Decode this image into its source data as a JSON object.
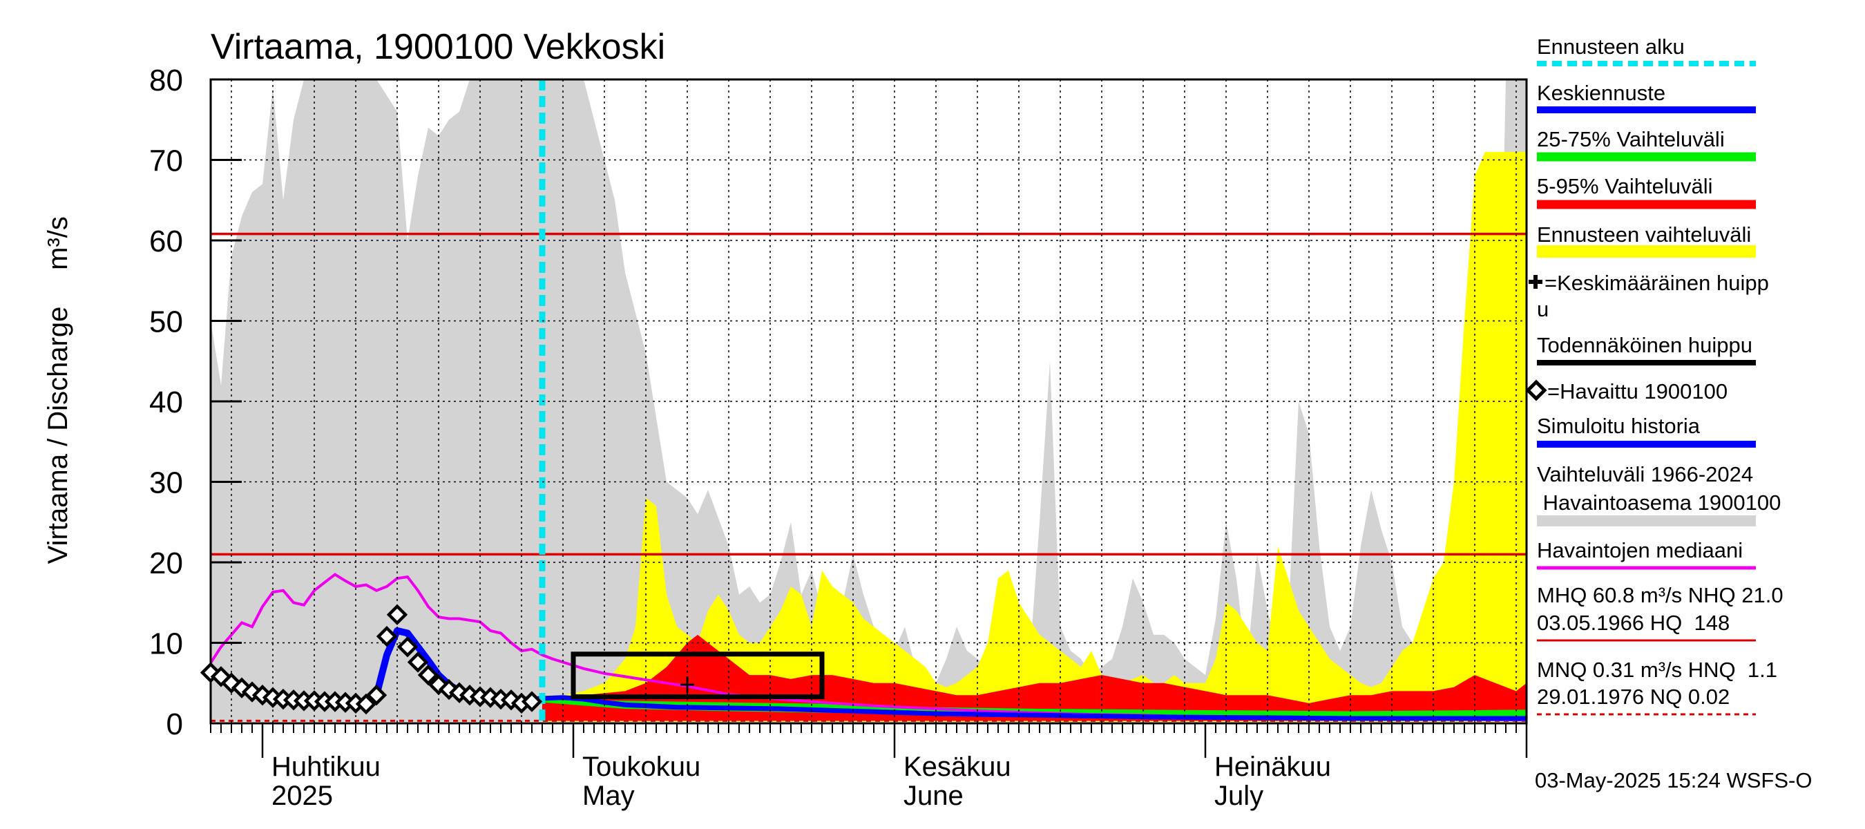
{
  "chart_data": {
    "type": "area",
    "title": "Virtaama, 1900100 Vekkoski",
    "ylabel": "Virtaama / Discharge",
    "yunit": "m³/s",
    "ylim": [
      0,
      80
    ],
    "yticks": [
      "0",
      "10",
      "20",
      "30",
      "40",
      "50",
      "60",
      "70",
      "80"
    ],
    "xlim_days": [
      0,
      127
    ],
    "x_start": "2025-03-26",
    "forecast_start_day": 32,
    "months": [
      {
        "day": 6,
        "fi": "Huhtikuu",
        "en": "2025"
      },
      {
        "day": 36,
        "fi": "Toukokuu",
        "en": "May"
      },
      {
        "day": 67,
        "fi": "Kesäkuu",
        "en": "June"
      },
      {
        "day": 97,
        "fi": "Heinäkuu",
        "en": "July"
      }
    ],
    "hlines": [
      {
        "name": "MHQ",
        "value": 60.8
      },
      {
        "name": "NHQ",
        "value": 21.0
      },
      {
        "name": "MNQ",
        "value": 0.31,
        "dashed": true
      }
    ],
    "history_range": {
      "x": [
        0,
        1,
        2,
        3,
        4,
        5,
        6,
        7,
        8,
        9,
        10,
        11,
        12,
        14,
        16,
        18,
        19,
        20,
        21,
        22,
        23,
        24,
        25,
        26,
        27,
        28,
        29,
        30,
        31,
        32,
        33,
        35,
        36,
        38,
        39,
        40,
        42,
        44,
        46,
        47,
        48,
        50,
        51,
        52,
        53,
        54,
        55,
        56,
        57,
        58,
        59,
        60,
        61,
        62,
        63,
        64,
        65,
        66,
        67,
        68,
        69,
        70,
        71,
        72,
        73,
        74,
        75,
        76,
        77,
        78,
        79,
        80,
        81,
        82,
        83,
        84,
        85,
        86,
        87,
        88,
        89,
        90,
        91,
        92,
        93,
        94,
        95,
        96,
        97,
        98,
        99,
        100,
        101,
        102,
        103,
        104,
        105,
        106,
        107,
        108,
        109,
        110,
        111,
        112,
        113,
        114,
        115,
        116,
        117,
        118,
        119,
        120,
        121,
        122,
        123,
        124,
        125,
        126,
        127
      ],
      "upper": [
        50,
        42,
        58,
        63,
        66,
        67,
        79,
        65,
        75,
        80,
        80,
        80,
        80,
        80,
        80,
        76,
        60,
        68,
        74,
        73,
        75,
        76,
        80,
        80,
        80,
        80,
        80,
        80,
        80,
        80,
        80,
        80,
        80,
        70,
        65,
        56,
        46,
        30,
        28,
        26,
        29,
        22,
        16,
        17,
        15,
        16,
        20,
        25,
        16,
        19,
        14,
        13,
        15,
        21,
        16,
        12,
        10,
        9,
        12,
        7,
        6,
        5,
        8,
        12,
        9,
        8,
        7,
        16,
        12,
        7,
        7,
        25,
        45,
        12,
        9,
        8,
        6,
        7,
        8,
        12,
        18,
        15,
        11,
        11,
        10,
        8,
        7,
        6,
        13,
        25,
        18,
        7,
        21,
        14,
        9,
        13,
        40,
        36,
        22,
        12,
        9,
        12,
        22,
        29,
        24,
        20,
        12,
        10,
        8,
        15,
        18,
        20,
        24,
        24,
        20,
        20,
        80,
        80,
        80
      ],
      "lower": [
        0.2,
        0.2,
        0.2,
        0.2,
        0.2,
        0.2,
        0.2,
        0.2,
        0.2,
        0.2,
        0.2,
        0.2,
        0.2,
        0.2,
        0.2,
        0.2,
        0.2,
        0.2,
        0.2,
        0.2,
        0.2,
        0.2,
        0.2,
        0.2,
        0.2,
        0.2,
        0.2,
        0.2,
        0.2,
        0.2,
        0.2,
        0.2,
        0.2,
        0.2,
        0.2,
        0.2,
        0.2,
        0.2,
        0.2,
        0.2,
        0.2,
        0.2,
        0.2,
        0.2,
        0.2,
        0.2,
        0.2,
        0.2,
        0.2,
        0.2,
        0.2,
        0.2,
        0.2,
        0.2,
        0.2,
        0.2,
        0.2,
        0.2,
        0.2,
        0.2,
        0.2,
        0.2,
        0.2,
        0.2,
        0.2,
        0.2,
        0.2,
        0.2,
        0.2,
        0.2,
        0.2,
        0.2,
        0.2,
        0.2,
        0.2,
        0.2,
        0.2,
        0.2,
        0.2,
        0.2,
        0.2,
        0.2,
        0.2,
        0.2,
        0.2,
        0.2,
        0.2,
        0.2,
        0.2,
        0.2,
        0.2,
        0.2,
        0.2,
        0.2,
        0.2,
        0.2,
        0.2,
        0.2,
        0.2,
        0.2,
        0.2,
        0.2,
        0.2,
        0.2,
        0.2,
        0.2,
        0.2,
        0.2,
        0.2,
        0.2,
        0.2,
        0.2,
        0.2,
        0.2,
        0.2,
        0.2,
        0.2,
        0.2,
        0.2
      ]
    },
    "forecast_range": {
      "x": [
        32,
        34,
        36,
        38,
        40,
        41,
        42,
        43,
        44,
        45,
        46,
        47,
        48,
        49,
        50,
        51,
        52,
        53,
        54,
        55,
        56,
        57,
        58,
        59,
        60,
        61,
        62,
        63,
        64,
        65,
        66,
        67,
        68,
        69,
        70,
        71,
        72,
        73,
        74,
        75,
        76,
        77,
        78,
        79,
        80,
        81,
        82,
        83,
        84,
        85,
        86,
        87,
        88,
        89,
        90,
        91,
        92,
        93,
        94,
        95,
        96,
        97,
        98,
        99,
        100,
        101,
        102,
        103,
        104,
        105,
        106,
        107,
        108,
        109,
        110,
        111,
        112,
        113,
        114,
        115,
        116,
        117,
        118,
        119,
        120,
        121,
        122,
        123,
        124,
        125,
        126,
        127
      ],
      "upper": [
        3.5,
        3.5,
        4,
        5,
        8,
        12,
        28,
        27,
        16,
        12,
        11,
        10,
        14,
        16,
        14,
        11,
        10,
        10,
        12,
        14,
        17,
        16,
        12,
        19,
        17,
        16,
        15,
        13,
        12,
        11,
        10,
        9,
        8,
        7,
        5,
        4.5,
        5,
        6,
        7,
        10,
        18,
        19,
        15,
        13,
        11,
        10,
        9,
        8,
        7,
        9,
        6,
        5,
        5,
        5.5,
        6,
        5,
        5,
        6,
        5,
        5,
        5,
        8,
        15,
        14,
        12,
        10,
        9,
        22,
        18,
        14,
        12,
        10,
        8,
        7,
        6,
        5,
        4.5,
        5,
        7,
        9,
        10,
        14,
        18,
        20,
        30,
        50,
        68,
        71,
        71,
        71,
        71,
        71
      ],
      "lower": [
        0.2,
        0.2,
        0.2,
        0.2,
        0.2,
        0.2,
        0.2,
        0.2,
        0.2,
        0.2,
        0.2,
        0.2,
        0.2,
        0.2,
        0.2,
        0.2,
        0.2,
        0.2,
        0.2,
        0.2,
        0.2,
        0.2,
        0.2,
        0.2,
        0.2,
        0.2,
        0.2,
        0.2,
        0.2,
        0.2,
        0.2,
        0.2,
        0.2,
        0.2,
        0.2,
        0.2,
        0.2,
        0.2,
        0.2,
        0.2,
        0.2,
        0.2,
        0.2,
        0.2,
        0.2,
        0.2,
        0.2,
        0.2,
        0.2,
        0.2,
        0.2,
        0.2,
        0.2,
        0.2,
        0.2,
        0.2,
        0.2,
        0.2,
        0.2,
        0.2,
        0.2,
        0.2,
        0.2,
        0.2,
        0.2,
        0.2,
        0.2,
        0.2,
        0.2,
        0.2,
        0.2,
        0.2,
        0.2,
        0.2,
        0.2,
        0.2,
        0.2,
        0.2,
        0.2,
        0.2,
        0.2,
        0.2,
        0.2,
        0.2,
        0.2,
        0.2,
        0.2,
        0.2,
        0.2,
        0.2,
        0.2,
        0.2
      ]
    },
    "range_5_95": {
      "x": [
        32,
        36,
        40,
        42,
        44,
        46,
        47,
        48,
        50,
        52,
        54,
        56,
        58,
        60,
        62,
        64,
        66,
        68,
        70,
        72,
        74,
        76,
        78,
        80,
        82,
        84,
        86,
        88,
        90,
        92,
        94,
        96,
        98,
        100,
        102,
        104,
        106,
        108,
        110,
        112,
        114,
        116,
        118,
        120,
        122,
        124,
        126,
        127
      ],
      "upper": [
        3.3,
        3.5,
        4,
        5,
        7,
        10,
        11,
        10,
        8,
        6,
        6,
        5.5,
        6,
        6,
        5.5,
        5,
        5,
        4.5,
        4,
        3.5,
        3.5,
        4,
        4.5,
        5,
        5,
        5.5,
        6,
        5.5,
        5,
        5,
        4.5,
        4,
        3.5,
        3.5,
        3.5,
        3,
        2.5,
        3,
        3.5,
        3.5,
        4,
        4,
        4,
        4.5,
        6,
        5,
        4,
        5
      ],
      "lower": [
        0.3,
        0.3,
        0.3,
        0.3,
        0.3,
        0.3,
        0.3,
        0.3,
        0.3,
        0.3,
        0.3,
        0.3,
        0.3,
        0.3,
        0.3,
        0.3,
        0.3,
        0.3,
        0.3,
        0.3,
        0.3,
        0.3,
        0.3,
        0.3,
        0.3,
        0.3,
        0.3,
        0.3,
        0.3,
        0.3,
        0.3,
        0.3,
        0.3,
        0.3,
        0.3,
        0.3,
        0.3,
        0.3,
        0.3,
        0.3,
        0.3,
        0.3,
        0.3,
        0.3,
        0.3,
        0.3,
        0.3,
        0.3
      ]
    },
    "range_25_75": {
      "x": [
        32,
        40,
        50,
        60,
        70,
        80,
        90,
        100,
        110,
        120,
        127
      ],
      "upper": [
        3.0,
        2.8,
        2.6,
        2.4,
        2.0,
        1.8,
        1.7,
        1.6,
        1.5,
        1.6,
        1.7
      ],
      "lower": [
        2.6,
        1.8,
        1.5,
        1.3,
        1.0,
        0.9,
        0.8,
        0.8,
        0.7,
        0.8,
        0.8
      ]
    },
    "median": {
      "x": [
        0,
        1,
        2,
        3,
        4,
        5,
        6,
        7,
        8,
        9,
        10,
        11,
        12,
        13,
        14,
        15,
        16,
        17,
        18,
        19,
        20,
        21,
        22,
        23,
        24,
        25,
        26,
        27,
        28,
        29,
        30,
        31,
        32,
        33,
        34,
        35,
        36,
        38,
        40,
        42,
        44,
        46,
        48,
        50,
        55,
        60,
        65,
        70,
        75,
        80,
        85,
        90,
        95,
        100,
        110,
        120,
        127
      ],
      "values": [
        7.5,
        9.5,
        11,
        12.5,
        12,
        14.5,
        16.3,
        16.5,
        15,
        14.7,
        16.5,
        17.5,
        18.5,
        17.7,
        17,
        17.2,
        16.5,
        17,
        18,
        18.2,
        16.5,
        14.5,
        13.2,
        13,
        13,
        12.8,
        12.6,
        11.5,
        11.2,
        10,
        9,
        9.2,
        8.5,
        8,
        7.6,
        7.2,
        6.8,
        6.2,
        5.8,
        5.4,
        5,
        4.6,
        4.1,
        3.6,
        3,
        2.5,
        2.1,
        1.8,
        1.5,
        1.3,
        1.1,
        1,
        0.8,
        0.7,
        0.55,
        0.5,
        0.4
      ]
    },
    "forecast_mean": {
      "x": [
        31,
        32,
        34,
        36,
        38,
        40,
        45,
        50,
        55,
        60,
        65,
        70,
        75,
        80,
        85,
        90,
        95,
        100,
        105,
        110,
        115,
        120,
        125,
        127
      ],
      "values": [
        3,
        3.1,
        3.2,
        3.0,
        2.6,
        2.3,
        2.0,
        1.9,
        1.8,
        1.6,
        1.4,
        1.2,
        1.1,
        1.0,
        0.9,
        0.8,
        0.75,
        0.7,
        0.65,
        0.6,
        0.6,
        0.6,
        0.6,
        0.6
      ]
    },
    "simulated_history": {
      "x": [
        0,
        1,
        2,
        3,
        4,
        5,
        6,
        7,
        8,
        9,
        10,
        11,
        12,
        13,
        14,
        15,
        16,
        17,
        18,
        19,
        20,
        21,
        22,
        23,
        24,
        25,
        26,
        27,
        28,
        29,
        30,
        31
      ],
      "values": [
        6.3,
        5.8,
        5.0,
        4.4,
        3.9,
        3.5,
        3.2,
        3.0,
        2.9,
        2.8,
        2.8,
        2.7,
        2.7,
        2.6,
        2.5,
        2.4,
        3.5,
        8.5,
        11.5,
        11.2,
        9.5,
        7.8,
        6.0,
        4.8,
        4.0,
        3.6,
        3.3,
        3.1,
        3.0,
        2.9,
        2.8,
        3.0
      ]
    },
    "observed": {
      "x": [
        0,
        1,
        2,
        3,
        4,
        5,
        6,
        7,
        8,
        9,
        10,
        11,
        12,
        13,
        14,
        15,
        16,
        17,
        18,
        19,
        20,
        21,
        22,
        23,
        24,
        25,
        26,
        27,
        28,
        29,
        30,
        31
      ],
      "values": [
        6.3,
        5.8,
        5.0,
        4.4,
        3.9,
        3.5,
        3.2,
        3.0,
        2.9,
        2.8,
        2.8,
        2.7,
        2.7,
        2.6,
        2.5,
        2.4,
        3.5,
        10.8,
        13.5,
        9.5,
        7.6,
        6.0,
        4.8,
        4.2,
        3.8,
        3.5,
        3.3,
        3.2,
        3.0,
        2.9,
        2.5,
        2.7
      ]
    },
    "probable_peak_box": {
      "x0": 35,
      "x1": 59,
      "y0": 3.3,
      "y1": 8.6
    },
    "mean_peak": {
      "x": 46,
      "y": 4.8
    },
    "legend": {
      "forecast_start": "Ennusteen alku",
      "mean_forecast": "Keskiennuste",
      "range_25_75": "25-75% Vaihteluväli",
      "range_5_95": "5-95% Vaihteluväli",
      "forecast_range": "Ennusteen vaihteluväli",
      "mean_peak_l1": "=Keskimääräinen huipp",
      "mean_peak_l2": "u",
      "probable_peak": "Todennäköinen huippu",
      "observed": "=Havaittu 1900100",
      "simulated": "Simuloitu historia",
      "history_l1": "Vaihteluväli 1966-2024",
      "history_l2": " Havaintoasema 1900100",
      "median": "Havaintojen mediaani",
      "hq_l1": "MHQ 60.8 m³/s NHQ 21.0",
      "hq_l2": "03.05.1966 HQ  148",
      "nq_l1": "MNQ 0.31 m³/s HNQ  1.1",
      "nq_l2": "29.01.1976 NQ 0.02"
    },
    "timestamp": "03-May-2025 15:24 WSFS-O",
    "colors": {
      "history": "#d3d3d3",
      "forecast_range": "#ffff00",
      "range_5_95": "#ff0000",
      "range_25_75": "#00ee00",
      "mean": "#0000ff",
      "simulated": "#0000ff",
      "median": "#ee00ee",
      "forecast_start": "#00e5ee",
      "reference": "#dd0000"
    }
  }
}
